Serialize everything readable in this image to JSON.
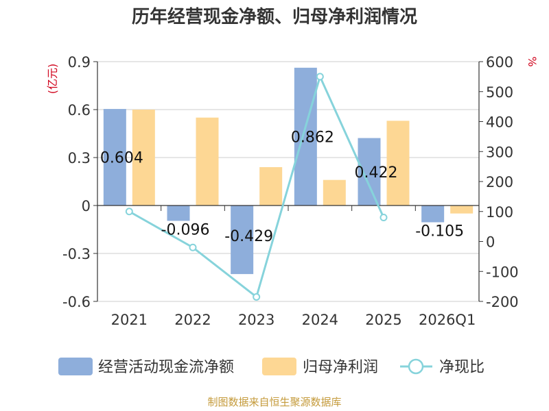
{
  "chart_data": {
    "type": "bar",
    "title": "历年经营现金净额、归母净利润情况",
    "categories": [
      "2021",
      "2022",
      "2023",
      "2024",
      "2025",
      "2026Q1"
    ],
    "series": [
      {
        "name": "经营活动现金流净额",
        "type": "bar",
        "axis": "left",
        "color": "#8eaedb",
        "values": [
          0.604,
          -0.096,
          -0.429,
          0.862,
          0.422,
          -0.105
        ],
        "labels": [
          "0.604",
          "-0.096",
          "-0.429",
          "0.862",
          "0.422",
          "-0.105"
        ]
      },
      {
        "name": "归母净利润",
        "type": "bar",
        "axis": "left",
        "color": "#fdd794",
        "values": [
          0.6,
          0.55,
          0.24,
          0.16,
          0.53,
          -0.05
        ]
      },
      {
        "name": "净现比",
        "type": "line",
        "axis": "right",
        "color": "#86d3db",
        "values": [
          100,
          -20,
          -185,
          550,
          80,
          null
        ]
      }
    ],
    "ylabel_left": "(亿元)",
    "ylabel_right": "%",
    "ylim_left": [
      -0.6,
      0.9
    ],
    "yticks_left": [
      "0.9",
      "0.6",
      "0.3",
      "0",
      "-0.3",
      "-0.6"
    ],
    "ylim_right": [
      -200,
      600
    ],
    "yticks_right": [
      "600",
      "500",
      "400",
      "300",
      "200",
      "100",
      "0",
      "-100",
      "-200"
    ],
    "legend_position": "bottom",
    "grid": true
  },
  "source": "制图数据来自恒生聚源数据库"
}
